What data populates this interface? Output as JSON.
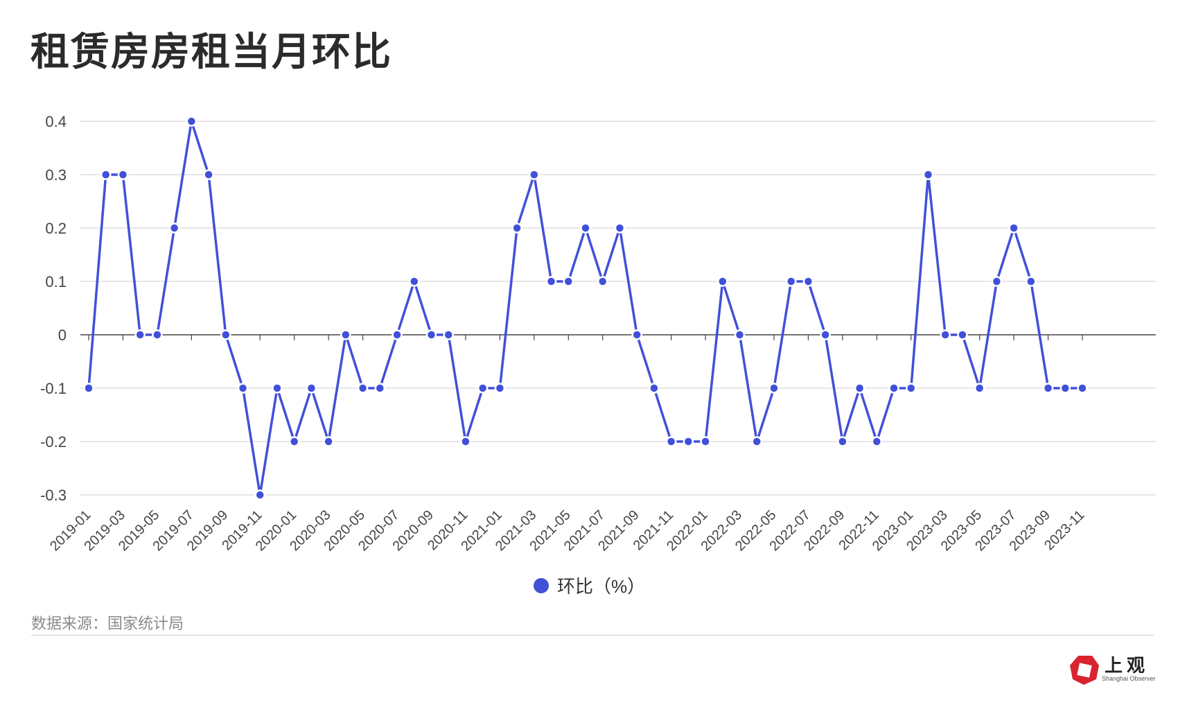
{
  "title": "租赁房房租当月环比",
  "legend": {
    "label": "环比（%）"
  },
  "source": "数据来源：国家统计局",
  "brand": {
    "name": "上观",
    "sub": "Shanghai Observer",
    "logo_color": "#d9232f"
  },
  "colors": {
    "series": "#4150d8",
    "grid": "#d6d6d6",
    "zero_line": "#444444"
  },
  "chart_data": {
    "type": "line",
    "title": "租赁房房租当月环比",
    "xlabel": "",
    "ylabel": "",
    "ylim": [
      -0.3,
      0.4
    ],
    "yticks": [
      0.4,
      0.3,
      0.2,
      0.1,
      0,
      -0.1,
      -0.2,
      -0.3
    ],
    "ytick_labels": [
      "0.4",
      "0.3",
      "0.2",
      "0.1",
      "0",
      "-0.1",
      "-0.2",
      "-0.3"
    ],
    "grid": true,
    "legend_position": "bottom",
    "x": [
      "2019-01",
      "2019-02",
      "2019-03",
      "2019-04",
      "2019-05",
      "2019-06",
      "2019-07",
      "2019-08",
      "2019-09",
      "2019-10",
      "2019-11",
      "2019-12",
      "2020-01",
      "2020-02",
      "2020-03",
      "2020-04",
      "2020-05",
      "2020-06",
      "2020-07",
      "2020-08",
      "2020-09",
      "2020-10",
      "2020-11",
      "2020-12",
      "2021-01",
      "2021-02",
      "2021-03",
      "2021-04",
      "2021-05",
      "2021-06",
      "2021-07",
      "2021-08",
      "2021-09",
      "2021-10",
      "2021-11",
      "2021-12",
      "2022-01",
      "2022-02",
      "2022-03",
      "2022-04",
      "2022-05",
      "2022-06",
      "2022-07",
      "2022-08",
      "2022-09",
      "2022-10",
      "2022-11",
      "2022-12",
      "2023-01",
      "2023-02",
      "2023-03",
      "2023-04",
      "2023-05",
      "2023-06",
      "2023-07",
      "2023-08",
      "2023-09",
      "2023-10",
      "2023-11"
    ],
    "xtick_labels": [
      "2019-01",
      "2019-03",
      "2019-05",
      "2019-07",
      "2019-09",
      "2019-11",
      "2020-01",
      "2020-03",
      "2020-05",
      "2020-07",
      "2020-09",
      "2020-11",
      "2021-01",
      "2021-03",
      "2021-05",
      "2021-07",
      "2021-09",
      "2021-11",
      "2022-01",
      "2022-03",
      "2022-05",
      "2022-07",
      "2022-09",
      "2022-11",
      "2023-01",
      "2023-03",
      "2023-05",
      "2023-07",
      "2023-09",
      "2023-11"
    ],
    "series": [
      {
        "name": "环比（%）",
        "values": [
          -0.1,
          0.3,
          0.3,
          0,
          0,
          0.2,
          0.4,
          0.3,
          0,
          -0.1,
          -0.3,
          -0.1,
          -0.2,
          -0.1,
          -0.2,
          0,
          -0.1,
          -0.1,
          0,
          0.1,
          0,
          0,
          -0.2,
          -0.1,
          -0.1,
          0.2,
          0.3,
          0.1,
          0.1,
          0.2,
          0.1,
          0.2,
          0,
          -0.1,
          -0.2,
          -0.2,
          -0.2,
          0.1,
          0,
          -0.2,
          -0.1,
          0.1,
          0.1,
          0,
          -0.2,
          -0.1,
          -0.2,
          -0.1,
          -0.1,
          0.3,
          0,
          0,
          -0.1,
          0.1,
          0.2,
          0.1,
          -0.1,
          -0.1,
          -0.1
        ]
      }
    ]
  }
}
